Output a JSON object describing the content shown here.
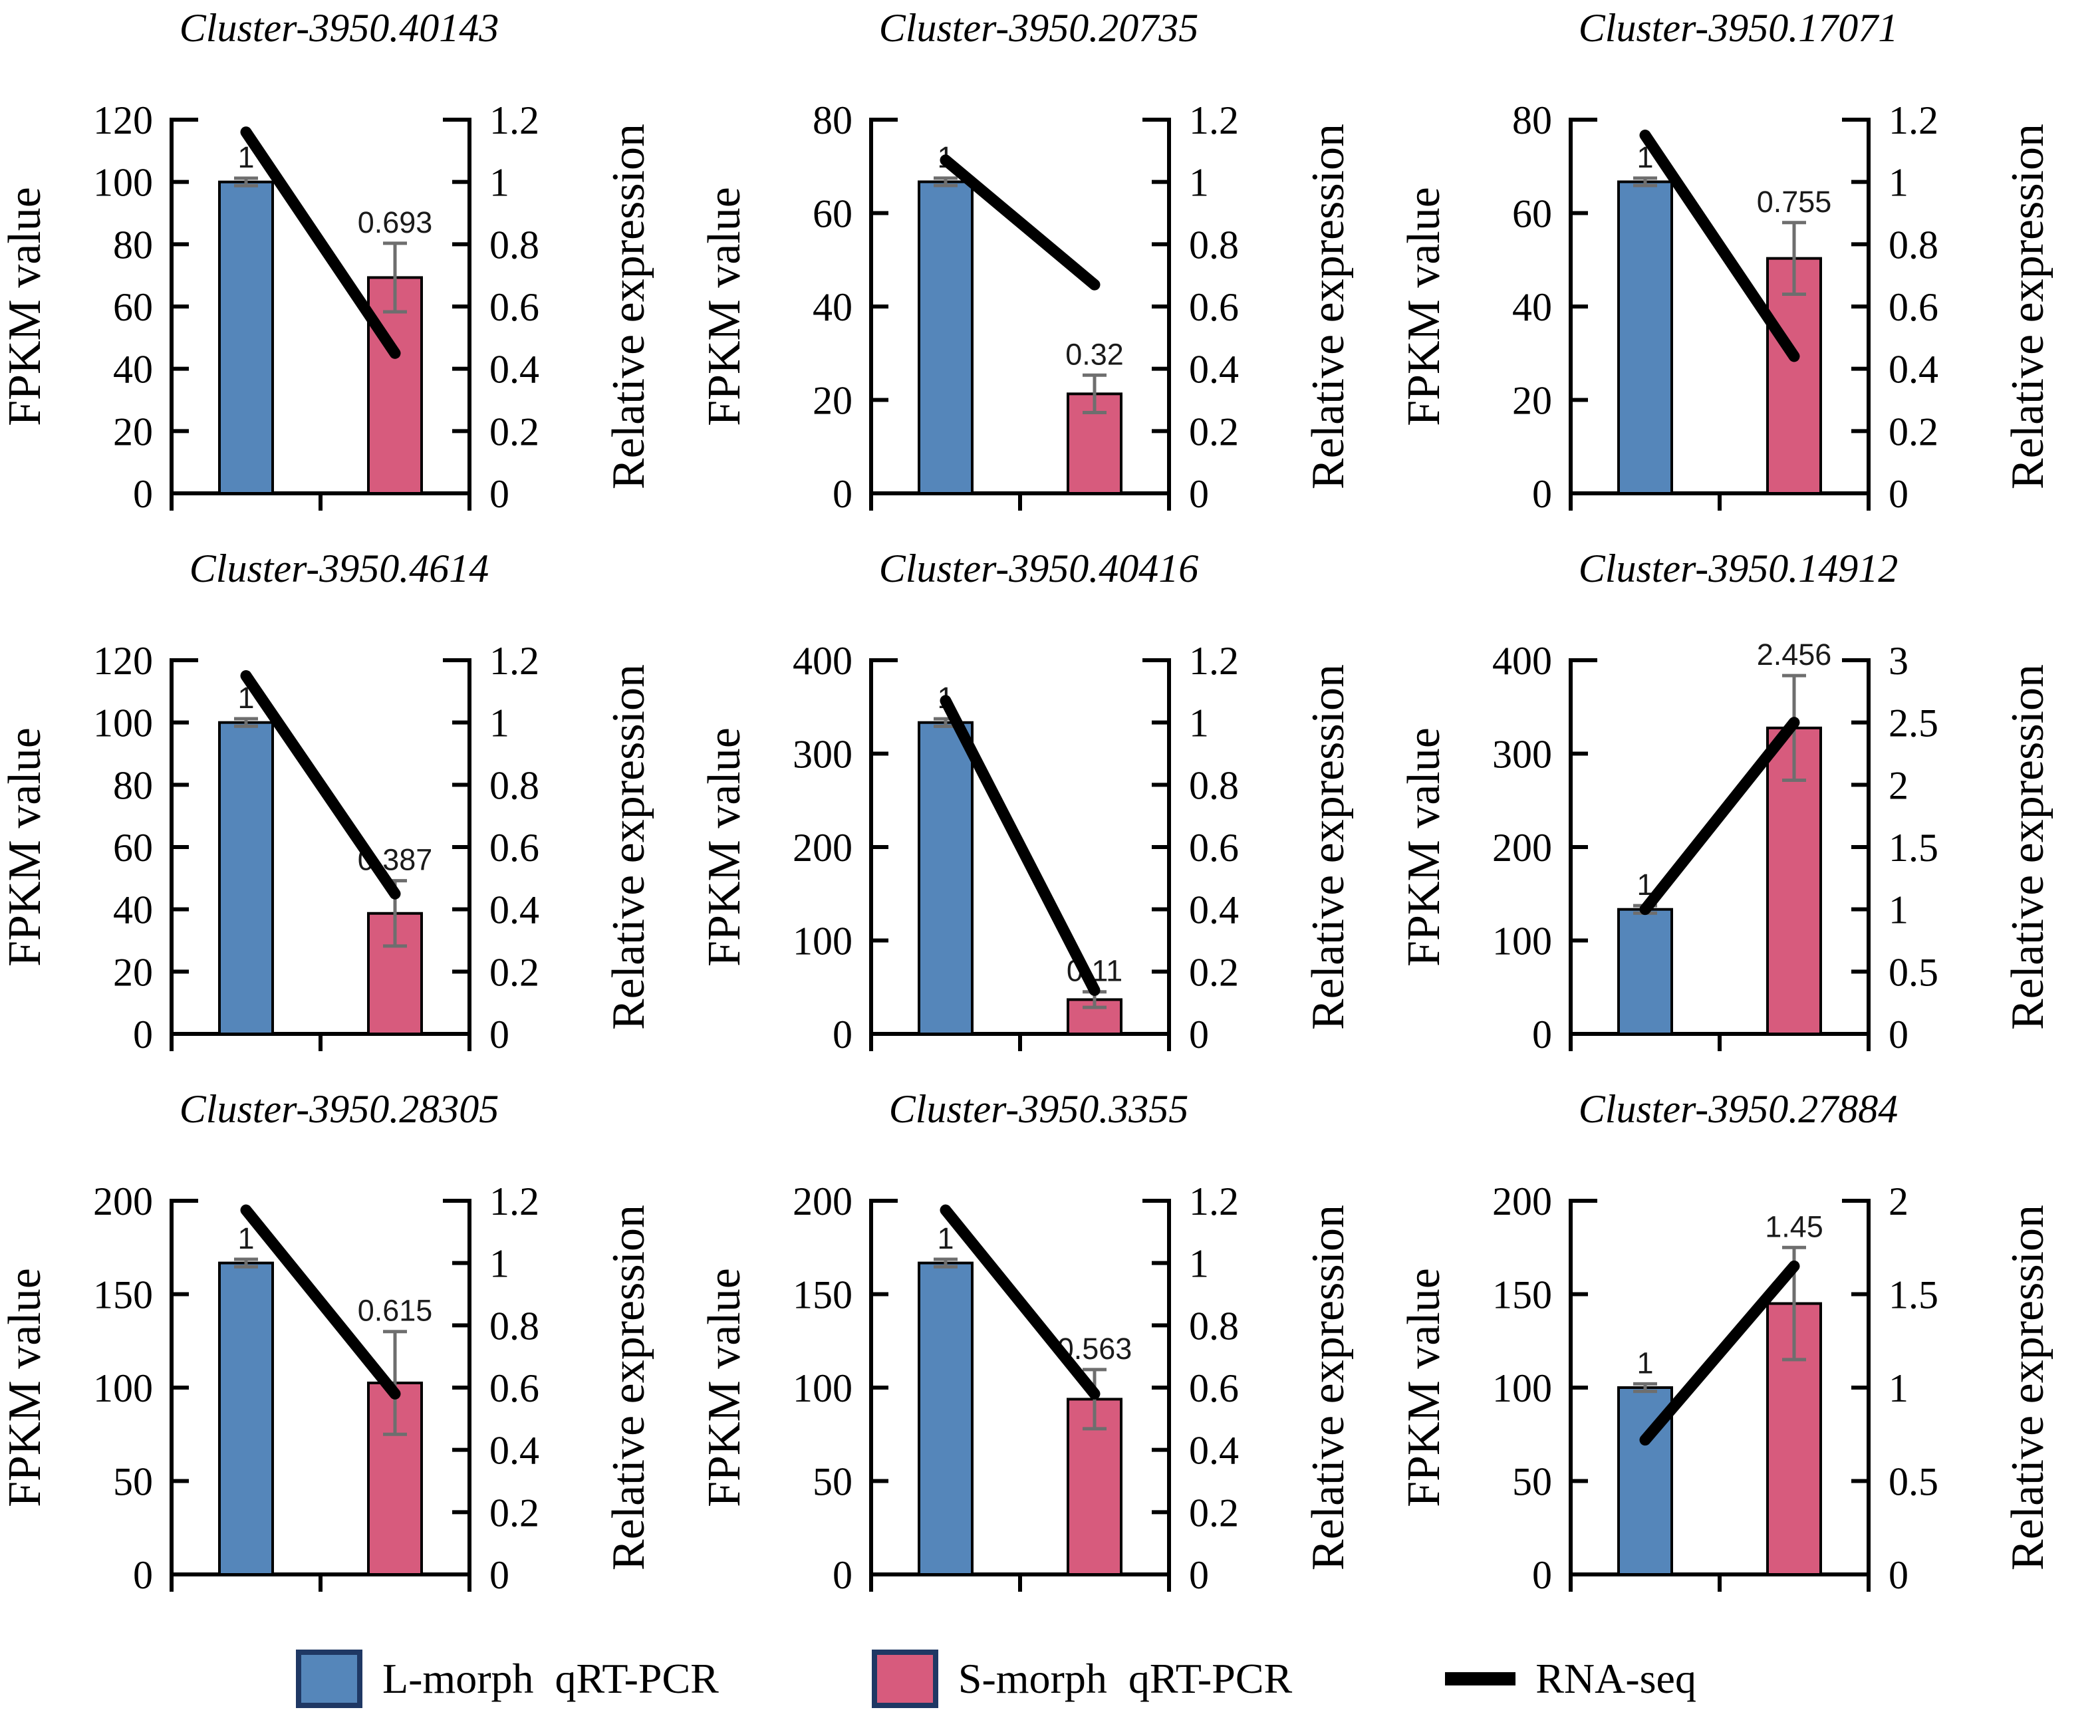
{
  "legend": {
    "items": [
      {
        "label": "L-morph  qRT-PCR",
        "type": "bar",
        "color": "#5586ba",
        "border": "#1f3864"
      },
      {
        "label": "S-morph  qRT-PCR",
        "type": "bar",
        "color": "#d75b7d",
        "border": "#1f3864"
      },
      {
        "label": "RNA-seq",
        "type": "line",
        "color": "#000000"
      }
    ]
  },
  "chart_data": [
    {
      "type": "bar+line",
      "title": "Cluster-3950.40143",
      "categories": [
        "L-morph",
        "S-morph"
      ],
      "left_axis": {
        "label": "FPKM value",
        "max": 120,
        "ticks": [
          "0",
          "20",
          "40",
          "60",
          "80",
          "100",
          "120"
        ]
      },
      "right_axis": {
        "label": "Relative expression",
        "max": 1.2,
        "ticks": [
          "0",
          "0.2",
          "0.4",
          "0.6",
          "0.8",
          "1",
          "1.2"
        ]
      },
      "bars": [
        {
          "series": "L-morph qRT-PCR",
          "fpkm": 100,
          "label": "1",
          "err": 0.012
        },
        {
          "series": "S-morph qRT-PCR",
          "fpkm": 69.3,
          "label": "0.693",
          "err": 0.11
        }
      ],
      "line": {
        "series": "RNA-seq",
        "values": [
          1.16,
          0.45
        ]
      }
    },
    {
      "type": "bar+line",
      "title": "Cluster-3950.20735",
      "categories": [
        "L-morph",
        "S-morph"
      ],
      "left_axis": {
        "label": "FPKM value",
        "max": 80,
        "ticks": [
          "0",
          "20",
          "40",
          "60",
          "80"
        ]
      },
      "right_axis": {
        "label": "Relative expression",
        "max": 1.2,
        "ticks": [
          "0",
          "0.2",
          "0.4",
          "0.6",
          "0.8",
          "1",
          "1.2"
        ]
      },
      "bars": [
        {
          "series": "L-morph qRT-PCR",
          "fpkm": 66.7,
          "label": "1",
          "err": 0.012
        },
        {
          "series": "S-morph qRT-PCR",
          "fpkm": 21.3,
          "label": "0.32",
          "err": 0.06
        }
      ],
      "line": {
        "series": "RNA-seq",
        "values": [
          1.07,
          0.67
        ]
      }
    },
    {
      "type": "bar+line",
      "title": "Cluster-3950.17071",
      "categories": [
        "L-morph",
        "S-morph"
      ],
      "left_axis": {
        "label": "FPKM value",
        "max": 80,
        "ticks": [
          "0",
          "20",
          "40",
          "60",
          "80"
        ]
      },
      "right_axis": {
        "label": "Relative expression",
        "max": 1.2,
        "ticks": [
          "0",
          "0.2",
          "0.4",
          "0.6",
          "0.8",
          "1",
          "1.2"
        ]
      },
      "bars": [
        {
          "series": "L-morph qRT-PCR",
          "fpkm": 66.7,
          "label": "1",
          "err": 0.012
        },
        {
          "series": "S-morph qRT-PCR",
          "fpkm": 50.3,
          "label": "0.755",
          "err": 0.115
        }
      ],
      "line": {
        "series": "RNA-seq",
        "values": [
          1.15,
          0.44
        ]
      }
    },
    {
      "type": "bar+line",
      "title": "Cluster-3950.4614",
      "categories": [
        "L-morph",
        "S-morph"
      ],
      "left_axis": {
        "label": "FPKM value",
        "max": 120,
        "ticks": [
          "0",
          "20",
          "40",
          "60",
          "80",
          "100",
          "120"
        ]
      },
      "right_axis": {
        "label": "Relative expression",
        "max": 1.2,
        "ticks": [
          "0",
          "0.2",
          "0.4",
          "0.6",
          "0.8",
          "1",
          "1.2"
        ]
      },
      "bars": [
        {
          "series": "L-morph qRT-PCR",
          "fpkm": 100,
          "label": "1",
          "err": 0.012
        },
        {
          "series": "S-morph qRT-PCR",
          "fpkm": 38.7,
          "label": "0.387",
          "err": 0.105
        }
      ],
      "line": {
        "series": "RNA-seq",
        "values": [
          1.15,
          0.45
        ]
      }
    },
    {
      "type": "bar+line",
      "title": "Cluster-3950.40416",
      "categories": [
        "L-morph",
        "S-morph"
      ],
      "left_axis": {
        "label": "FPKM value",
        "max": 400,
        "ticks": [
          "0",
          "100",
          "200",
          "300",
          "400"
        ]
      },
      "right_axis": {
        "label": "Relative expression",
        "max": 1.2,
        "ticks": [
          "0",
          "0.2",
          "0.4",
          "0.6",
          "0.8",
          "1",
          "1.2"
        ]
      },
      "bars": [
        {
          "series": "L-morph qRT-PCR",
          "fpkm": 333.3,
          "label": "1",
          "err": 0.012
        },
        {
          "series": "S-morph qRT-PCR",
          "fpkm": 36.7,
          "label": "0.11",
          "err": 0.025
        }
      ],
      "line": {
        "series": "RNA-seq",
        "values": [
          1.07,
          0.14
        ]
      }
    },
    {
      "type": "bar+line",
      "title": "Cluster-3950.14912",
      "categories": [
        "L-morph",
        "S-morph"
      ],
      "left_axis": {
        "label": "FPKM value",
        "max": 400,
        "ticks": [
          "0",
          "100",
          "200",
          "300",
          "400"
        ]
      },
      "right_axis": {
        "label": "Relative expression",
        "max": 3,
        "ticks": [
          "0",
          "0.5",
          "1",
          "1.5",
          "2",
          "2.5",
          "3"
        ]
      },
      "bars": [
        {
          "series": "L-morph qRT-PCR",
          "fpkm": 133.3,
          "label": "1",
          "err": 0.03
        },
        {
          "series": "S-morph qRT-PCR",
          "fpkm": 327.5,
          "label": "2.456",
          "err": 0.42
        }
      ],
      "line": {
        "series": "RNA-seq",
        "values": [
          1.0,
          2.5
        ]
      }
    },
    {
      "type": "bar+line",
      "title": "Cluster-3950.28305",
      "categories": [
        "L-morph",
        "S-morph"
      ],
      "left_axis": {
        "label": "FPKM value",
        "max": 200,
        "ticks": [
          "0",
          "50",
          "100",
          "150",
          "200"
        ]
      },
      "right_axis": {
        "label": "Relative expression",
        "max": 1.2,
        "ticks": [
          "0",
          "0.2",
          "0.4",
          "0.6",
          "0.8",
          "1",
          "1.2"
        ]
      },
      "bars": [
        {
          "series": "L-morph qRT-PCR",
          "fpkm": 166.7,
          "label": "1",
          "err": 0.012
        },
        {
          "series": "S-morph qRT-PCR",
          "fpkm": 102.5,
          "label": "0.615",
          "err": 0.165
        }
      ],
      "line": {
        "series": "RNA-seq",
        "values": [
          1.17,
          0.58
        ]
      }
    },
    {
      "type": "bar+line",
      "title": "Cluster-3950.3355",
      "categories": [
        "L-morph",
        "S-morph"
      ],
      "left_axis": {
        "label": "FPKM value",
        "max": 200,
        "ticks": [
          "0",
          "50",
          "100",
          "150",
          "200"
        ]
      },
      "right_axis": {
        "label": "Relative expression",
        "max": 1.2,
        "ticks": [
          "0",
          "0.2",
          "0.4",
          "0.6",
          "0.8",
          "1",
          "1.2"
        ]
      },
      "bars": [
        {
          "series": "L-morph qRT-PCR",
          "fpkm": 166.7,
          "label": "1",
          "err": 0.012
        },
        {
          "series": "S-morph qRT-PCR",
          "fpkm": 93.8,
          "label": "0.563",
          "err": 0.095
        }
      ],
      "line": {
        "series": "RNA-seq",
        "values": [
          1.17,
          0.58
        ]
      }
    },
    {
      "type": "bar+line",
      "title": "Cluster-3950.27884",
      "categories": [
        "L-morph",
        "S-morph"
      ],
      "left_axis": {
        "label": "FPKM value",
        "max": 200,
        "ticks": [
          "0",
          "50",
          "100",
          "150",
          "200"
        ]
      },
      "right_axis": {
        "label": "Relative expression",
        "max": 2,
        "ticks": [
          "0",
          "0.5",
          "1",
          "1.5",
          "2"
        ]
      },
      "bars": [
        {
          "series": "L-morph qRT-PCR",
          "fpkm": 100,
          "label": "1",
          "err": 0.02
        },
        {
          "series": "S-morph qRT-PCR",
          "fpkm": 145,
          "label": "1.45",
          "err": 0.3
        }
      ],
      "line": {
        "series": "RNA-seq",
        "values": [
          0.72,
          1.65
        ]
      }
    }
  ]
}
